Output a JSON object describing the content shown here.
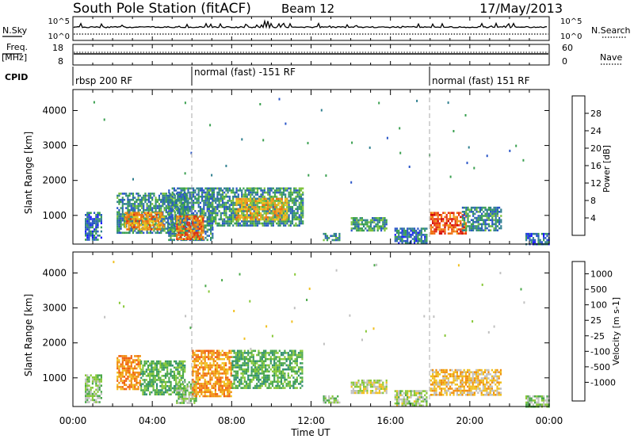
{
  "header": {
    "station": "South Pole Station (fitACF)",
    "beam": "Beam 12",
    "date": "17/May/2013"
  },
  "top_panels": {
    "nsky_label": "N.Sky",
    "nsearch_label": "N.Search",
    "nsky_ticks": [
      "10^5",
      "10^0"
    ],
    "nsearch_ticks": [
      "10^5",
      "10^0"
    ],
    "freq_label_1": "Freq.",
    "freq_label_2": "[MHz]",
    "freq_ticks": [
      "18",
      "8"
    ],
    "nave_label": "Nave",
    "nave_ticks": [
      "60",
      "0"
    ],
    "cpid_label": "CPID",
    "cpid_segments": [
      {
        "label": "rbsp 200 RF",
        "start_hour": 0
      },
      {
        "label": "normal (fast) -151 RF",
        "start_hour": 6
      },
      {
        "label": "normal (fast) 151 RF",
        "start_hour": 18
      }
    ]
  },
  "axes": {
    "ylabel": "Slant Range [km]",
    "y_ticks": [
      "1000",
      "2000",
      "3000",
      "4000"
    ],
    "xlabel": "Time UT",
    "x_ticks": [
      "00:00",
      "04:00",
      "08:00",
      "12:00",
      "16:00",
      "20:00",
      "00:00"
    ]
  },
  "power_scale": {
    "title": "Power [dB]",
    "labels": [
      "4",
      "8",
      "12",
      "16",
      "20",
      "24",
      "28"
    ],
    "colors": [
      "#1a1aff",
      "#2a55c8",
      "#2f7f8f",
      "#3aa050",
      "#7cc23a",
      "#e8c81a",
      "#f0a020",
      "#f07010",
      "#e63010",
      "#d20000"
    ]
  },
  "velocity_scale": {
    "title": "Velocity [m s-1]",
    "labels": [
      "1000",
      "500",
      "100",
      "25",
      "-25",
      "-100",
      "-500",
      "-1000"
    ],
    "colors": [
      "#2244aa",
      "#2e6ea0",
      "#2f8f6f",
      "#4aa84a",
      "#88c838",
      "#c0c0c0",
      "#f0c020",
      "#f09010",
      "#f06010",
      "#e02010"
    ]
  },
  "chart_data": [
    {
      "type": "heatmap",
      "title": "",
      "ylabel": "Slant Range [km]",
      "xlabel": "",
      "x_range_hours": [
        0,
        24
      ],
      "y_range_km": [
        180,
        4600
      ],
      "colorbar": "Power [dB]",
      "colorbar_range": [
        0,
        30
      ],
      "echo_regions": [
        {
          "t0": 0.6,
          "t1": 1.4,
          "r0": 300,
          "r1": 1100,
          "value": 6
        },
        {
          "t0": 2.2,
          "t1": 5.8,
          "r0": 500,
          "r1": 1650,
          "value": 8
        },
        {
          "t0": 2.6,
          "t1": 4.6,
          "r0": 600,
          "r1": 1100,
          "value": 20
        },
        {
          "t0": 4.8,
          "t1": 7.0,
          "r0": 300,
          "r1": 1800,
          "value": 8
        },
        {
          "t0": 5.2,
          "t1": 6.6,
          "r0": 300,
          "r1": 1000,
          "value": 22
        },
        {
          "t0": 6.8,
          "t1": 11.6,
          "r0": 700,
          "r1": 1800,
          "value": 9
        },
        {
          "t0": 8.2,
          "t1": 10.8,
          "r0": 900,
          "r1": 1500,
          "value": 18
        },
        {
          "t0": 12.6,
          "t1": 13.4,
          "r0": 300,
          "r1": 500,
          "value": 8
        },
        {
          "t0": 14.0,
          "t1": 15.8,
          "r0": 550,
          "r1": 950,
          "value": 10
        },
        {
          "t0": 16.2,
          "t1": 17.8,
          "r0": 200,
          "r1": 650,
          "value": 7
        },
        {
          "t0": 18.0,
          "t1": 19.8,
          "r0": 500,
          "r1": 1100,
          "value": 24
        },
        {
          "t0": 19.6,
          "t1": 21.6,
          "r0": 550,
          "r1": 1250,
          "value": 8
        },
        {
          "t0": 22.8,
          "t1": 24.0,
          "r0": 200,
          "r1": 500,
          "value": 6
        }
      ]
    },
    {
      "type": "heatmap",
      "title": "",
      "ylabel": "Slant Range [km]",
      "xlabel": "Time UT",
      "x_range_hours": [
        0,
        24
      ],
      "y_range_km": [
        180,
        4600
      ],
      "colorbar": "Velocity [m s-1]",
      "colorbar_range": [
        -1000,
        1000
      ],
      "echo_regions": [
        {
          "t0": 0.6,
          "t1": 1.4,
          "r0": 300,
          "r1": 1100,
          "value": 100
        },
        {
          "t0": 2.2,
          "t1": 3.4,
          "r0": 700,
          "r1": 1650,
          "value": -500
        },
        {
          "t0": 3.4,
          "t1": 5.6,
          "r0": 500,
          "r1": 1500,
          "value": 300
        },
        {
          "t0": 5.2,
          "t1": 6.2,
          "r0": 300,
          "r1": 900,
          "value": 100
        },
        {
          "t0": 6.0,
          "t1": 8.0,
          "r0": 500,
          "r1": 1800,
          "value": -500
        },
        {
          "t0": 8.0,
          "t1": 11.6,
          "r0": 700,
          "r1": 1800,
          "value": 300
        },
        {
          "t0": 12.6,
          "t1": 13.4,
          "r0": 300,
          "r1": 500,
          "value": 100
        },
        {
          "t0": 14.0,
          "t1": 15.8,
          "r0": 550,
          "r1": 950,
          "value": -100
        },
        {
          "t0": 16.2,
          "t1": 17.8,
          "r0": 200,
          "r1": 650,
          "value": 0
        },
        {
          "t0": 18.0,
          "t1": 21.6,
          "r0": 500,
          "r1": 1250,
          "value": -300
        },
        {
          "t0": 22.8,
          "t1": 24.0,
          "r0": 200,
          "r1": 500,
          "value": 100
        }
      ]
    }
  ]
}
